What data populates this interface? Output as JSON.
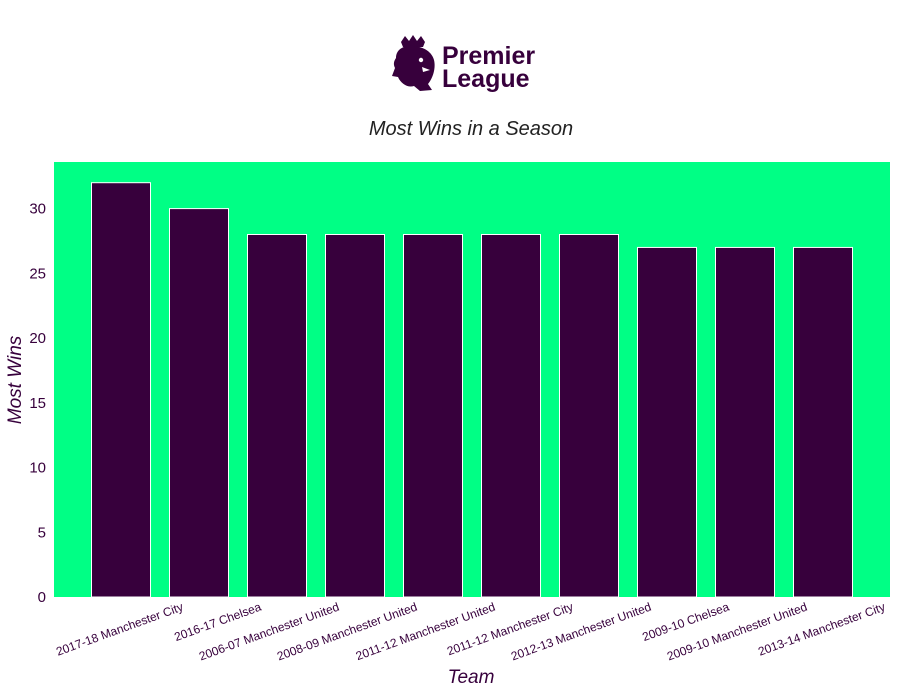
{
  "logo": {
    "line1": "Premier",
    "line2": "League",
    "icon": "lion-crest-icon"
  },
  "colors": {
    "plot_background": "#00ff85",
    "bar_fill": "#37003c",
    "bar_stroke": "#ffffff",
    "text": "#37003c",
    "title": "#222222"
  },
  "chart_data": {
    "type": "bar",
    "title": "Most Wins in a Season",
    "xlabel": "Team",
    "ylabel": "Most Wins",
    "categories": [
      "2017-18 Manchester City",
      "2016-17 Chelsea",
      "2006-07 Manchester United",
      "2008-09 Manchester United",
      "2011-12 Manchester United",
      "2011-12 Manchester City",
      "2012-13 Manchester United",
      "2009-10 Chelsea",
      "2009-10 Manchester United",
      "2013-14 Manchester City"
    ],
    "values": [
      32,
      30,
      28,
      28,
      28,
      28,
      28,
      27,
      27,
      27
    ],
    "ylim": [
      0,
      33.6
    ],
    "yticks": [
      0,
      5,
      10,
      15,
      20,
      25,
      30
    ],
    "grid": false,
    "legend": "none"
  }
}
